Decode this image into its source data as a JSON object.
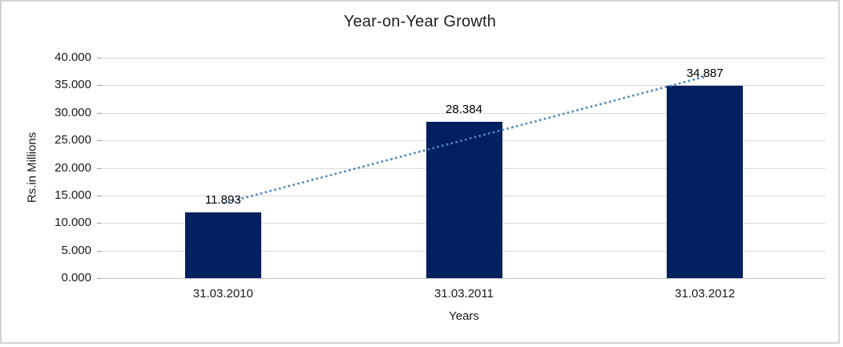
{
  "chart_data": {
    "type": "bar",
    "title": "Year-on-Year Growth",
    "xlabel": "Years",
    "ylabel": "Rs.in Millions",
    "categories": [
      "31.03.2010",
      "31.03.2011",
      "31.03.2012"
    ],
    "values": [
      11893,
      28384,
      34887
    ],
    "value_labels": [
      "11.893",
      "28.384",
      "34.887"
    ],
    "ylim": [
      0,
      40000
    ],
    "yticks": [
      {
        "value": 0,
        "label": "0.000"
      },
      {
        "value": 5000,
        "label": "5.000"
      },
      {
        "value": 10000,
        "label": "10.000"
      },
      {
        "value": 15000,
        "label": "15.000"
      },
      {
        "value": 20000,
        "label": "20.000"
      },
      {
        "value": 25000,
        "label": "25.000"
      },
      {
        "value": 30000,
        "label": "30.000"
      },
      {
        "value": 35000,
        "label": "35.000"
      },
      {
        "value": 40000,
        "label": "40.000"
      }
    ],
    "grid": true,
    "legend": "none",
    "bar_color": "#002060",
    "gridline_color": "#d9d9d9",
    "trendline": {
      "type": "linear",
      "style": "dotted",
      "color": "#4E86C4"
    }
  }
}
